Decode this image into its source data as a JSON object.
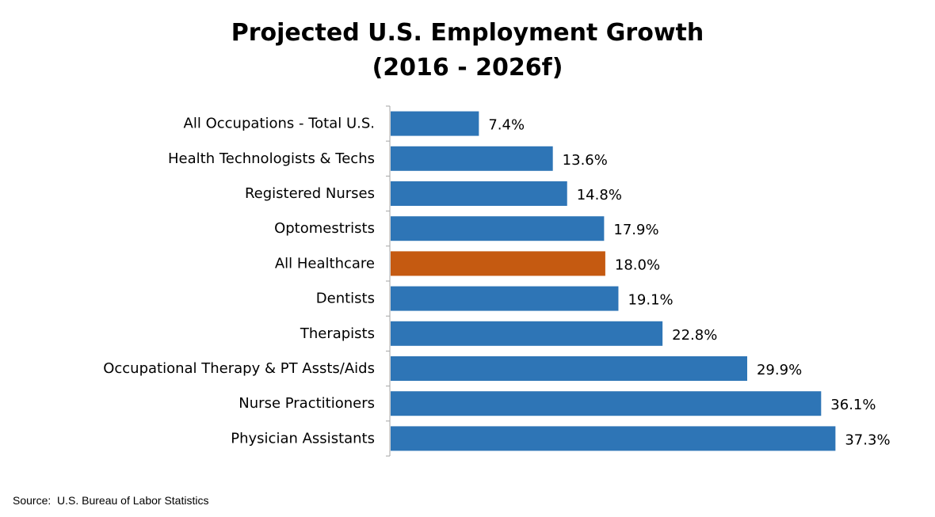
{
  "chart_data": {
    "type": "bar",
    "orientation": "horizontal",
    "title": "Projected U.S. Employment Growth",
    "subtitle": "(2016 - 2026f)",
    "categories": [
      "All Occupations - Total U.S.",
      "Health Technologists & Techs",
      "Registered Nurses",
      "Optomestrists",
      "All Healthcare",
      "Dentists",
      "Therapists",
      "Occupational Therapy & PT Assts/Aids",
      "Nurse Practitioners",
      "Physician Assistants"
    ],
    "values": [
      7.4,
      13.6,
      14.8,
      17.9,
      18.0,
      19.1,
      22.8,
      29.9,
      36.1,
      37.3
    ],
    "value_labels": [
      "7.4%",
      "13.6%",
      "14.8%",
      "17.9%",
      "18.0%",
      "19.1%",
      "22.8%",
      "29.9%",
      "36.1%",
      "37.3%"
    ],
    "xlim": [
      0,
      40
    ],
    "xlabel": "",
    "ylabel": "",
    "grid": false,
    "legend": "none",
    "colors": {
      "default": "#2E75B6",
      "highlight": "#C55A11",
      "axis": "#A6A6A6"
    },
    "highlight_index": 4
  },
  "footer": {
    "source": "Source:  U.S. Bureau of Labor Statistics"
  }
}
